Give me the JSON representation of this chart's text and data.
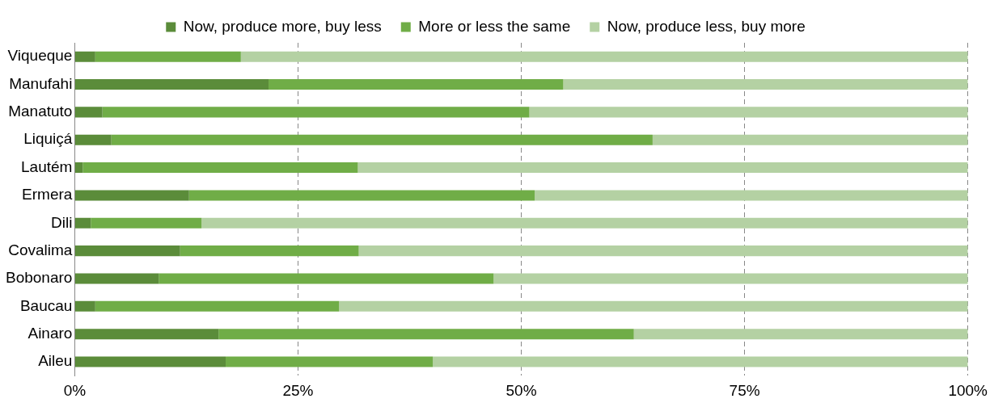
{
  "chart_data": {
    "type": "bar",
    "orientation": "horizontal",
    "stacked": true,
    "categories": [
      "Viqueque",
      "Manufahi",
      "Manatuto",
      "Liquiçá",
      "Lautém",
      "Ermera",
      "Dili",
      "Covalima",
      "Bobonaro",
      "Baucau",
      "Ainaro",
      "Aileu"
    ],
    "series": [
      {
        "name": "Now, produce more, buy less",
        "color": "#5b8c3a",
        "values": [
          2.3,
          21.7,
          3.1,
          4.1,
          0.9,
          12.8,
          1.8,
          11.8,
          9.4,
          2.3,
          16.1,
          16.9
        ]
      },
      {
        "name": "More or less the same",
        "color": "#70ad47",
        "values": [
          16.3,
          33.0,
          47.8,
          60.6,
          30.8,
          38.7,
          12.4,
          20.0,
          37.5,
          27.3,
          46.5,
          23.2
        ]
      },
      {
        "name": "Now, produce less, buy more",
        "color": "#b4d1a3",
        "values": [
          81.4,
          45.3,
          49.1,
          35.3,
          68.3,
          48.5,
          85.8,
          68.2,
          53.1,
          70.4,
          37.4,
          59.9
        ]
      }
    ],
    "xlim": [
      0,
      100
    ],
    "xticks": [
      {
        "value": 0,
        "label": "0%"
      },
      {
        "value": 25,
        "label": "25%"
      },
      {
        "value": 50,
        "label": "50%"
      },
      {
        "value": 75,
        "label": "75%"
      },
      {
        "value": 100,
        "label": "100%"
      }
    ],
    "grid": "x",
    "line_style": "dashed",
    "legend": "top"
  }
}
